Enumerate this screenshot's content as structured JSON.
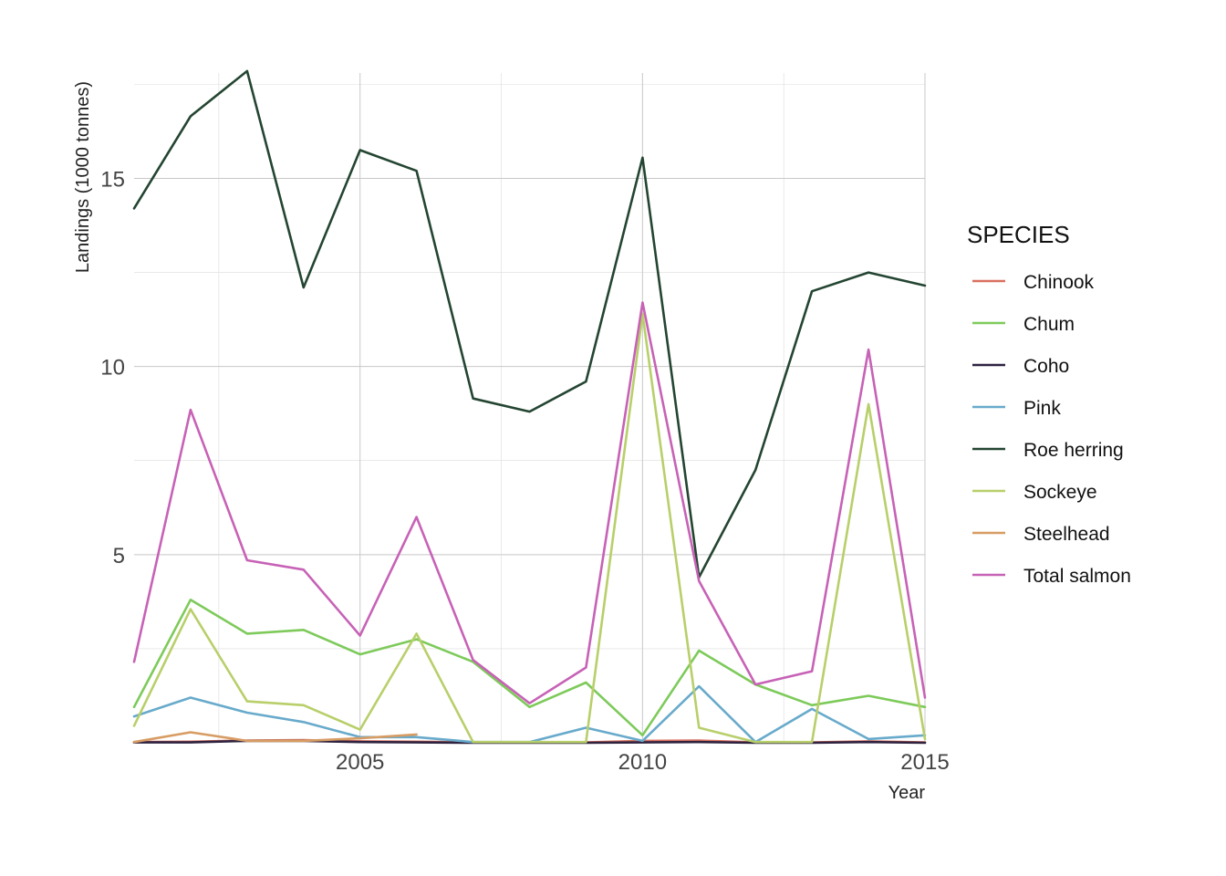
{
  "chart_data": {
    "type": "line",
    "title": "",
    "xlabel": "Year",
    "ylabel": "Landings (1000 tonnes)",
    "x": [
      2001,
      2002,
      2003,
      2004,
      2005,
      2006,
      2007,
      2008,
      2009,
      2010,
      2011,
      2012,
      2013,
      2014,
      2015
    ],
    "xlim": [
      2001,
      2015
    ],
    "ylim": [
      0,
      17.8
    ],
    "xticks": [
      2005,
      2010,
      2015
    ],
    "yticks": [
      5,
      10,
      15
    ],
    "grid": true,
    "legend_title": "SPECIES",
    "legend_position": "right",
    "series": [
      {
        "name": "Chinook",
        "color": "#d9705f",
        "values": [
          0.02,
          0.03,
          0.06,
          0.07,
          0.04,
          0.03,
          0.01,
          0.01,
          0.01,
          0.05,
          0.06,
          0.01,
          0.01,
          0.04,
          0.01
        ]
      },
      {
        "name": "Chum",
        "color": "#7dca5a",
        "values": [
          0.95,
          3.8,
          2.9,
          3.0,
          2.35,
          2.75,
          2.15,
          0.95,
          1.6,
          0.2,
          2.45,
          1.55,
          1.0,
          1.25,
          0.95
        ]
      },
      {
        "name": "Coho",
        "color": "#2f2340",
        "values": [
          0.01,
          0.01,
          0.05,
          0.05,
          0.02,
          0.01,
          0.0,
          0.0,
          0.0,
          0.01,
          0.02,
          0.0,
          0.0,
          0.02,
          0.0
        ]
      },
      {
        "name": "Pink",
        "color": "#68aacb",
        "values": [
          0.7,
          1.2,
          0.8,
          0.55,
          0.15,
          0.15,
          0.02,
          0.02,
          0.4,
          0.05,
          1.5,
          0.02,
          0.9,
          0.1,
          0.2
        ]
      },
      {
        "name": "Roe herring",
        "color": "#244532",
        "values": [
          14.2,
          16.65,
          17.85,
          12.1,
          15.75,
          15.2,
          9.15,
          8.8,
          9.6,
          15.55,
          4.4,
          7.25,
          12.0,
          12.5,
          12.15
        ]
      },
      {
        "name": "Sockeye",
        "color": "#b8cf6a",
        "values": [
          0.45,
          3.55,
          1.1,
          1.0,
          0.35,
          2.9,
          0.02,
          0.02,
          0.02,
          11.4,
          0.4,
          0.02,
          0.02,
          9.0,
          0.1
        ]
      },
      {
        "name": "Steelhead",
        "color": "#d79c63",
        "values": [
          0.02,
          0.28,
          0.05,
          0.05,
          0.12,
          0.22,
          null,
          null,
          null,
          null,
          null,
          null,
          null,
          null,
          null
        ]
      },
      {
        "name": "Total salmon",
        "color": "#c762b6",
        "values": [
          2.15,
          8.85,
          4.85,
          4.6,
          2.85,
          6.0,
          2.2,
          1.05,
          2.0,
          11.7,
          4.3,
          1.55,
          1.9,
          10.45,
          1.2
        ]
      }
    ]
  }
}
